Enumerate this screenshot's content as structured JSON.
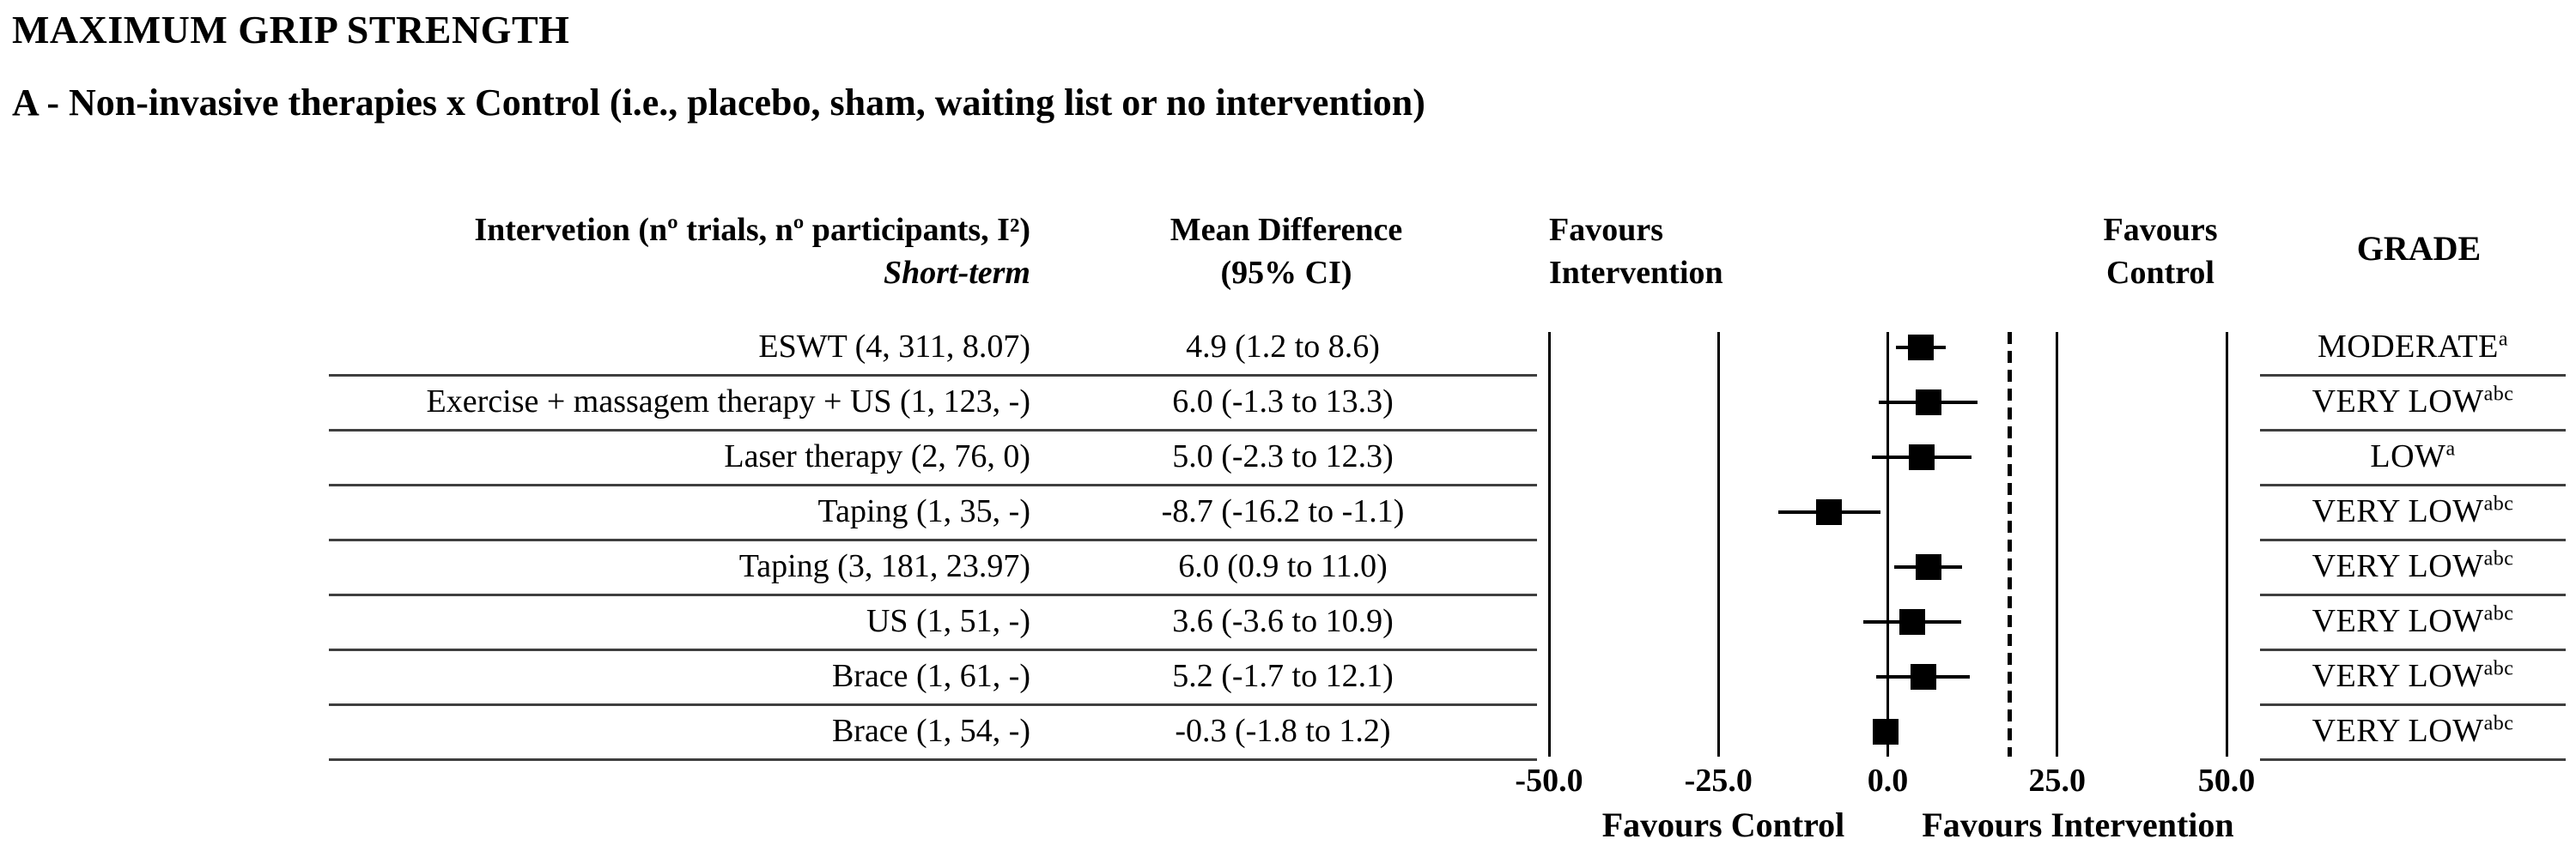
{
  "figure": {
    "title": "MAXIMUM GRIP STRENGTH",
    "subtitle": "A - Non-invasive therapies x Control (i.e., placebo, sham, waiting list or no intervention)"
  },
  "header": {
    "intervention_line1": "Intervetion (nº trials, nº participants, I²)",
    "intervention_line2": "Short-term",
    "mean_diff_line1": "Mean Difference",
    "mean_diff_line2": "(95% CI)",
    "favours_intervention": [
      "Favours",
      "Intervention"
    ],
    "favours_control": [
      "Favours",
      "Control"
    ],
    "grade": "GRADE"
  },
  "colors": {
    "text": "#000000",
    "separator": "#3f3f3f",
    "marker": "#000000"
  },
  "chart_data": {
    "type": "forest",
    "title": "MAXIMUM GRIP STRENGTH",
    "subtitle": "A - Non-invasive therapies x Control (i.e., placebo, sham, waiting list or no intervention)",
    "timepoint": "Short-term",
    "xlim": [
      -50,
      50
    ],
    "x_ticks": [
      -50,
      -25,
      0,
      25,
      50
    ],
    "x_tick_labels": [
      "-50.0",
      "-25.0",
      "0.0",
      "25.0",
      "50.0"
    ],
    "zero_line": 0,
    "dashed_reference_line_x": 18,
    "grid": "vertical-lines-at-ticks",
    "bottom_left_label": "Favours Control",
    "bottom_right_label": "Favours Intervention",
    "top_left_label": "Favours Intervention",
    "top_right_label": "Favours Control",
    "rows": [
      {
        "intervention": "ESWT (4, 311, 8.07)",
        "md_text": "4.9 (1.2 to 8.6)",
        "mean": 4.9,
        "ci_low": 1.2,
        "ci_high": 8.6,
        "grade": "MODERATE",
        "grade_sup": "a"
      },
      {
        "intervention": "Exercise + massagem therapy + US (1, 123, -)",
        "md_text": "6.0 (-1.3 to 13.3)",
        "mean": 6.0,
        "ci_low": -1.3,
        "ci_high": 13.3,
        "grade": "VERY LOW",
        "grade_sup": "abc"
      },
      {
        "intervention": "Laser therapy (2, 76, 0)",
        "md_text": "5.0 (-2.3 to 12.3)",
        "mean": 5.0,
        "ci_low": -2.3,
        "ci_high": 12.3,
        "grade": "LOW",
        "grade_sup": "a"
      },
      {
        "intervention": "Taping (1, 35, -)",
        "md_text": "-8.7 (-16.2 to -1.1)",
        "mean": -8.7,
        "ci_low": -16.2,
        "ci_high": -1.1,
        "grade": "VERY LOW",
        "grade_sup": "abc"
      },
      {
        "intervention": "Taping (3, 181, 23.97)",
        "md_text": "6.0 (0.9 to 11.0)",
        "mean": 6.0,
        "ci_low": 0.9,
        "ci_high": 11.0,
        "grade": "VERY LOW",
        "grade_sup": "abc"
      },
      {
        "intervention": "US (1, 51, -)",
        "md_text": "3.6 (-3.6 to 10.9)",
        "mean": 3.6,
        "ci_low": -3.6,
        "ci_high": 10.9,
        "grade": "VERY LOW",
        "grade_sup": "abc"
      },
      {
        "intervention": "Brace (1, 61, -)",
        "md_text": "5.2 (-1.7 to 12.1)",
        "mean": 5.2,
        "ci_low": -1.7,
        "ci_high": 12.1,
        "grade": "VERY LOW",
        "grade_sup": "abc"
      },
      {
        "intervention": "Brace (1, 54, -)",
        "md_text": "-0.3 (-1.8 to 1.2)",
        "mean": -0.3,
        "ci_low": -1.8,
        "ci_high": 1.2,
        "grade": "VERY LOW",
        "grade_sup": "abc"
      }
    ]
  }
}
